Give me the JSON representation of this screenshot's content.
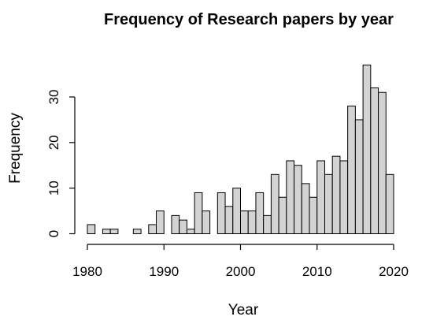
{
  "chart_data": {
    "type": "bar",
    "title": "Frequency of Research papers by year",
    "xlabel": "Year",
    "ylabel": "Frequency",
    "xlim": [
      1980,
      2021
    ],
    "ylim": [
      0,
      37
    ],
    "x_ticks": [
      1980,
      1990,
      2000,
      2010,
      2020
    ],
    "y_ticks": [
      0,
      10,
      20,
      30
    ],
    "grid": false,
    "bin_width": 1,
    "bins": [
      {
        "year": 1981,
        "value": 2
      },
      {
        "year": 1982,
        "value": 0
      },
      {
        "year": 1983,
        "value": 1
      },
      {
        "year": 1984,
        "value": 1
      },
      {
        "year": 1985,
        "value": 0
      },
      {
        "year": 1986,
        "value": 0
      },
      {
        "year": 1987,
        "value": 1
      },
      {
        "year": 1988,
        "value": 0
      },
      {
        "year": 1989,
        "value": 2
      },
      {
        "year": 1990,
        "value": 5
      },
      {
        "year": 1991,
        "value": 0
      },
      {
        "year": 1992,
        "value": 4
      },
      {
        "year": 1993,
        "value": 3
      },
      {
        "year": 1994,
        "value": 1
      },
      {
        "year": 1995,
        "value": 9
      },
      {
        "year": 1996,
        "value": 5
      },
      {
        "year": 1997,
        "value": 0
      },
      {
        "year": 1998,
        "value": 9
      },
      {
        "year": 1999,
        "value": 6
      },
      {
        "year": 2000,
        "value": 10
      },
      {
        "year": 2001,
        "value": 5
      },
      {
        "year": 2002,
        "value": 5
      },
      {
        "year": 2003,
        "value": 9
      },
      {
        "year": 2004,
        "value": 4
      },
      {
        "year": 2005,
        "value": 13
      },
      {
        "year": 2006,
        "value": 8
      },
      {
        "year": 2007,
        "value": 16
      },
      {
        "year": 2008,
        "value": 15
      },
      {
        "year": 2009,
        "value": 11
      },
      {
        "year": 2010,
        "value": 8
      },
      {
        "year": 2011,
        "value": 16
      },
      {
        "year": 2012,
        "value": 13
      },
      {
        "year": 2013,
        "value": 17
      },
      {
        "year": 2014,
        "value": 16
      },
      {
        "year": 2015,
        "value": 28
      },
      {
        "year": 2016,
        "value": 25
      },
      {
        "year": 2017,
        "value": 37
      },
      {
        "year": 2018,
        "value": 32
      },
      {
        "year": 2019,
        "value": 31
      },
      {
        "year": 2020,
        "value": 13
      }
    ]
  }
}
